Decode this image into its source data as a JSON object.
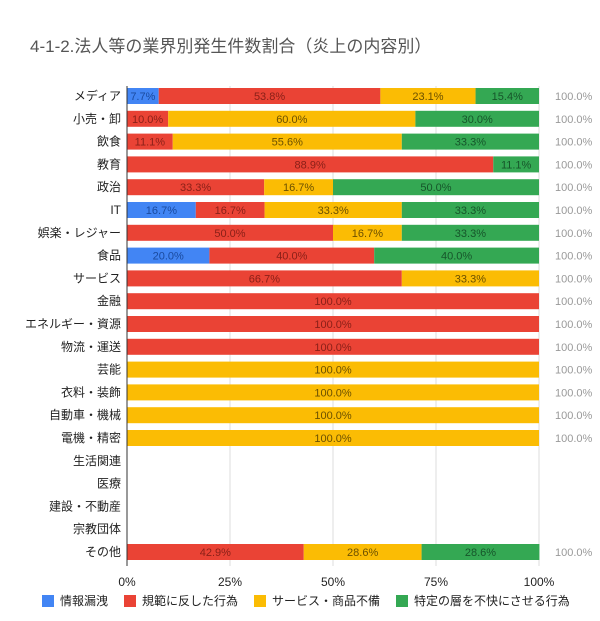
{
  "chart_data": {
    "type": "bar",
    "orientation": "horizontal",
    "stacked": "percent",
    "title": "4-1-2.法人等の業界別発生件数割合（炎上の内容別）",
    "categories": [
      "メディア",
      "小売・卸",
      "飲食",
      "教育",
      "政治",
      "IT",
      "娯楽・レジャー",
      "食品",
      "サービス",
      "金融",
      "エネルギー・資源",
      "物流・運送",
      "芸能",
      "衣料・装飾",
      "自動車・機械",
      "電機・精密",
      "生活関連",
      "医療",
      "建設・不動産",
      "宗教団体",
      "その他"
    ],
    "series": [
      {
        "name": "情報漏洩",
        "color": "#4285f4",
        "values": [
          7.7,
          0,
          0,
          0,
          0,
          16.7,
          0,
          20.0,
          0,
          0,
          0,
          0,
          0,
          0,
          0,
          0,
          0,
          0,
          0,
          0,
          0
        ]
      },
      {
        "name": "規範に反した行為",
        "color": "#ea4335",
        "values": [
          53.8,
          10.0,
          11.1,
          88.9,
          33.3,
          16.7,
          50.0,
          40.0,
          66.7,
          100.0,
          100.0,
          100.0,
          0,
          0,
          0,
          0,
          0,
          0,
          0,
          0,
          42.9
        ]
      },
      {
        "name": "サービス・商品不備",
        "color": "#fbbc04",
        "values": [
          23.1,
          60.0,
          55.6,
          0,
          16.7,
          33.3,
          16.7,
          0,
          33.3,
          0,
          0,
          0,
          100.0,
          100.0,
          100.0,
          100.0,
          0,
          0,
          0,
          0,
          28.6
        ]
      },
      {
        "name": "特定の層を不快にさせる行為",
        "color": "#34a853",
        "values": [
          15.4,
          30.0,
          33.3,
          11.1,
          50.0,
          33.3,
          33.3,
          40.0,
          0,
          0,
          0,
          0,
          0,
          0,
          0,
          0,
          0,
          0,
          0,
          0,
          28.6
        ]
      }
    ],
    "totals": [
      "100.0%",
      "100.0%",
      "100.0%",
      "100.0%",
      "100.0%",
      "100.0%",
      "100.0%",
      "100.0%",
      "100.0%",
      "100.0%",
      "100.0%",
      "100.0%",
      "100.0%",
      "100.0%",
      "100.0%",
      "100.0%",
      "",
      "",
      "",
      "",
      "100.0%"
    ],
    "xticks": [
      "0%",
      "25%",
      "50%",
      "75%",
      "100%"
    ],
    "xlim": [
      0,
      100
    ],
    "grid": true,
    "legend_position": "bottom"
  }
}
